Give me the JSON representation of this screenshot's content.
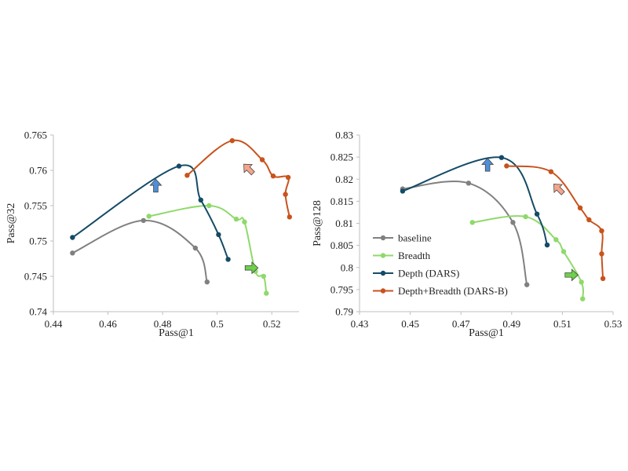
{
  "chart_data": [
    {
      "type": "line",
      "xlabel": "Pass@1",
      "ylabel": "Pass@32",
      "xlim": [
        0.44,
        0.53
      ],
      "ylim": [
        0.74,
        0.765
      ],
      "xticks": [
        "0.44",
        "0.46",
        "0.48",
        "0.5",
        "0.52"
      ],
      "yticks": [
        "0.74",
        "0.745",
        "0.75",
        "0.755",
        "0.76",
        "0.765"
      ],
      "legend": "none",
      "series": [
        {
          "name": "baseline",
          "color": "#808080",
          "x": [
            0.447,
            0.473,
            0.492,
            0.4963
          ],
          "y": [
            0.7483,
            0.7529,
            0.749,
            0.7442
          ]
        },
        {
          "name": "Breadth",
          "color": "#8fd96b",
          "x": [
            0.475,
            0.497,
            0.507,
            0.51,
            0.514,
            0.517,
            0.518
          ],
          "y": [
            0.7535,
            0.755,
            0.7531,
            0.7527,
            0.7457,
            0.745,
            0.7426
          ]
        },
        {
          "name": "Depth (DARS)",
          "color": "#144b66",
          "x": [
            0.447,
            0.486,
            0.494,
            0.5005,
            0.504
          ],
          "y": [
            0.7505,
            0.7606,
            0.7558,
            0.7509,
            0.7474
          ]
        },
        {
          "name": "Depth+Breadth (DARS-B)",
          "color": "#c8531c",
          "x": [
            0.489,
            0.5055,
            0.5165,
            0.5205,
            0.526,
            0.525,
            0.5265
          ],
          "y": [
            0.7593,
            0.7642,
            0.7615,
            0.7592,
            0.759,
            0.7566,
            0.7534
          ]
        }
      ],
      "arrows": [
        {
          "direction": "up",
          "color": "#4f8fd6",
          "x": 0.4775,
          "y": 0.7578
        },
        {
          "direction": "up-left",
          "color": "#f4a58a",
          "x": 0.5115,
          "y": 0.7602
        },
        {
          "direction": "right",
          "color": "#6fd04c",
          "x": 0.5125,
          "y": 0.7462
        }
      ]
    },
    {
      "type": "line",
      "xlabel": "Pass@1",
      "ylabel": "Pass@128",
      "xlim": [
        0.43,
        0.53
      ],
      "ylim": [
        0.79,
        0.83
      ],
      "xticks": [
        "0.43",
        "0.45",
        "0.47",
        "0.49",
        "0.51",
        "0.53"
      ],
      "yticks": [
        "0.79",
        "0.795",
        "0.8",
        "0.805",
        "0.81",
        "0.815",
        "0.82",
        "0.825",
        "0.83"
      ],
      "legend": "lower-left",
      "series": [
        {
          "name": "baseline",
          "color": "#808080",
          "x": [
            0.447,
            0.473,
            0.4905,
            0.496
          ],
          "y": [
            0.8178,
            0.8191,
            0.8102,
            0.7961
          ]
        },
        {
          "name": "Breadth",
          "color": "#8fd96b",
          "x": [
            0.4745,
            0.4955,
            0.5075,
            0.5105,
            0.5175,
            0.518
          ],
          "y": [
            0.8102,
            0.8115,
            0.8063,
            0.8036,
            0.7967,
            0.7929
          ]
        },
        {
          "name": "Depth (DARS)",
          "color": "#144b66",
          "x": [
            0.447,
            0.486,
            0.5,
            0.504
          ],
          "y": [
            0.8173,
            0.8249,
            0.8121,
            0.8051
          ]
        },
        {
          "name": "Depth+Breadth (DARS-B)",
          "color": "#c8531c",
          "x": [
            0.488,
            0.5055,
            0.517,
            0.5205,
            0.5255,
            0.5255,
            0.526
          ],
          "y": [
            0.823,
            0.8217,
            0.8135,
            0.8108,
            0.8083,
            0.8031,
            0.7975
          ]
        }
      ],
      "arrows": [
        {
          "direction": "up",
          "color": "#4f8fd6",
          "x": 0.4805,
          "y": 0.8232
        },
        {
          "direction": "up-left",
          "color": "#f4a58a",
          "x": 0.5085,
          "y": 0.8178
        },
        {
          "direction": "right",
          "color": "#6fd04c",
          "x": 0.5135,
          "y": 0.7983
        }
      ]
    }
  ]
}
